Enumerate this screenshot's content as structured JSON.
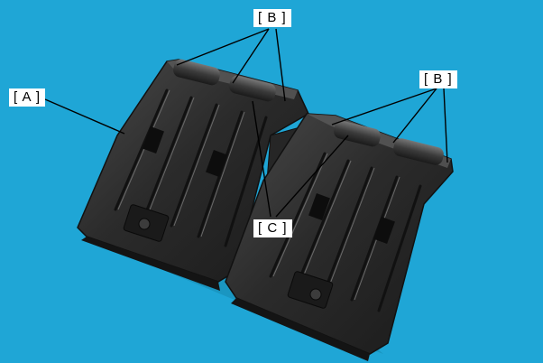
{
  "callouts": {
    "part_a": "[ A ]",
    "part_b_left": "[ B ]",
    "part_b_right": "[ B ]",
    "part_c": "[ C ]"
  },
  "colors": {
    "background": "#1fa6d6",
    "part_body": "#2b2b2b",
    "part_highlight": "#5a5a5a",
    "part_shadow": "#121212",
    "leader_line": "#000000",
    "callout_box": "#ffffff"
  }
}
